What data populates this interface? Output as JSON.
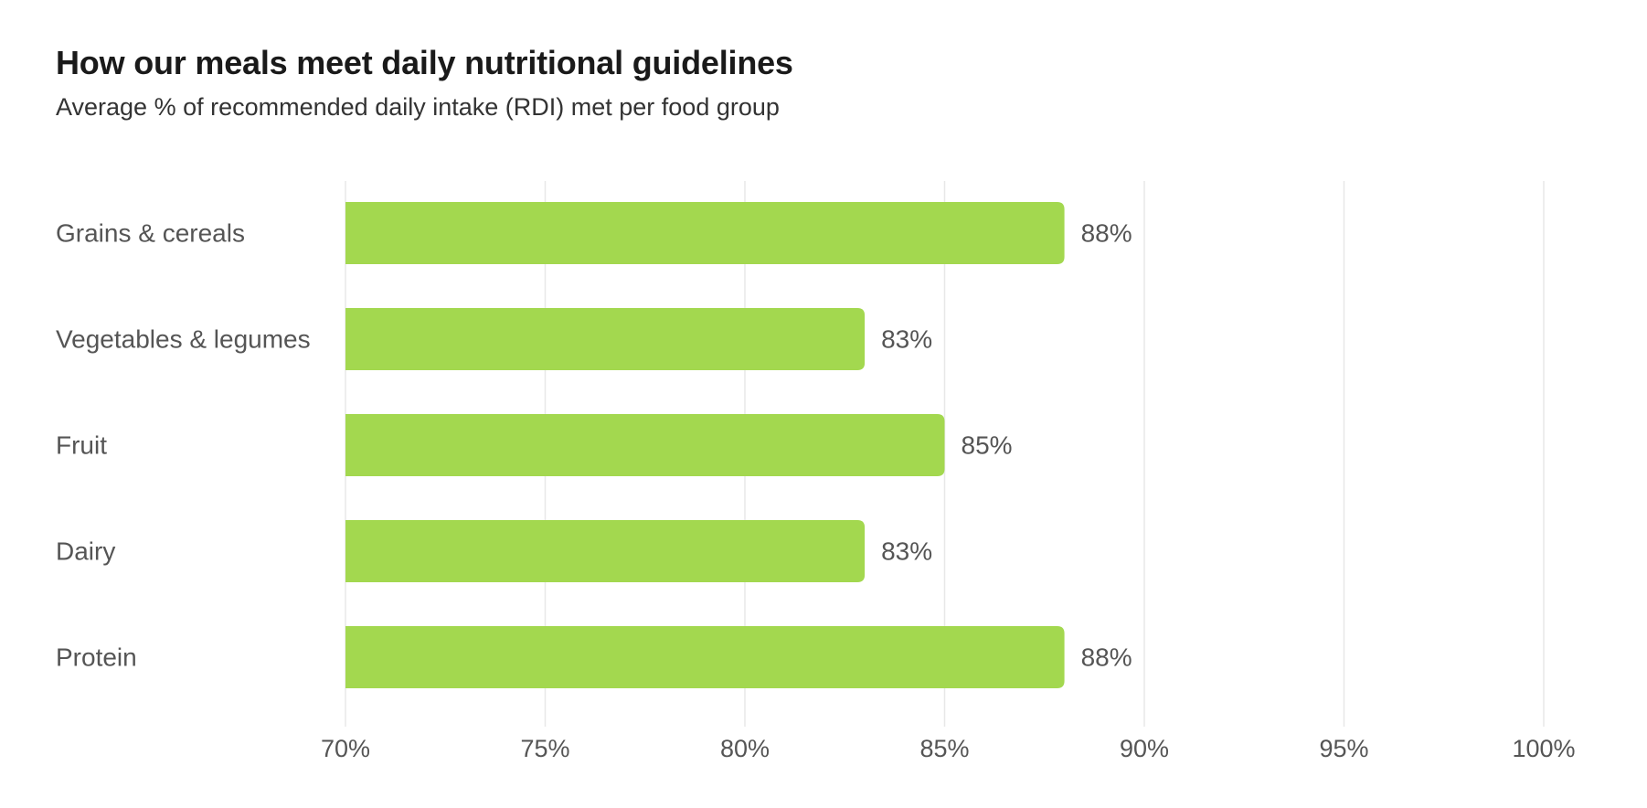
{
  "chart_data": {
    "type": "bar",
    "orientation": "horizontal",
    "title": "How our meals meet daily nutritional guidelines",
    "subtitle": "Average % of recommended daily intake (RDI) met per food group",
    "categories": [
      "Grains & cereals",
      "Vegetables & legumes",
      "Fruit",
      "Dairy",
      "Protein"
    ],
    "values": [
      88,
      83,
      85,
      83,
      88
    ],
    "value_labels": [
      "88%",
      "83%",
      "85%",
      "83%",
      "88%"
    ],
    "xlim": [
      70,
      100
    ],
    "x_ticks": [
      70,
      75,
      80,
      85,
      90,
      95,
      100
    ],
    "x_tick_labels": [
      "70%",
      "75%",
      "80%",
      "85%",
      "90%",
      "95%",
      "100%"
    ],
    "xlabel": "",
    "ylabel": "",
    "grid": true,
    "legend": "none",
    "colors": {
      "bar": "#a3d84f",
      "grid": "#e8e8e8",
      "title": "#1a1a1a",
      "subtitle": "#333333",
      "label": "#555555"
    }
  }
}
